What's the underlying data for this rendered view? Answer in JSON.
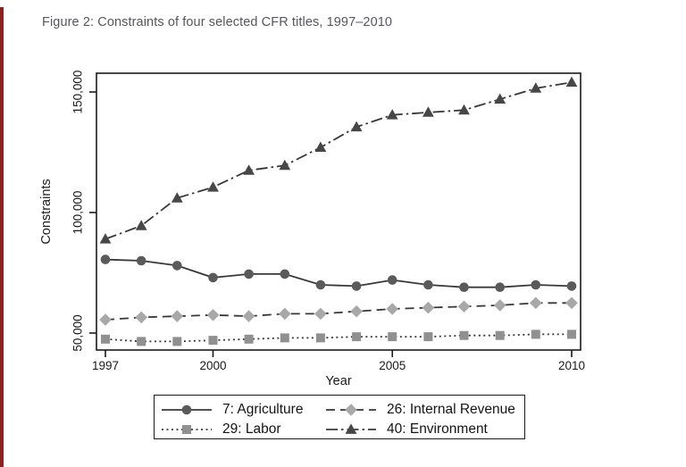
{
  "figure": {
    "title": "Figure 2: Constraints of four selected CFR titles, 1997–2010"
  },
  "chart_data": {
    "type": "line",
    "title": "Figure 2: Constraints of four selected CFR titles, 1997–2010",
    "xlabel": "Year",
    "ylabel": "Constraints",
    "x": [
      1997,
      1998,
      1999,
      2000,
      2001,
      2002,
      2003,
      2004,
      2005,
      2006,
      2007,
      2008,
      2009,
      2010
    ],
    "xticks": [
      1997,
      2000,
      2005,
      2010
    ],
    "yticks": [
      50000,
      100000,
      150000
    ],
    "ytick_labels": [
      "50,000",
      "100,000",
      "150,000"
    ],
    "xlim": [
      1996.75,
      2010.25
    ],
    "ylim": [
      43000,
      157700
    ],
    "grid": false,
    "legend_position": "bottom",
    "series": [
      {
        "name": "7: Agriculture",
        "marker": "circle",
        "line": "solid",
        "marker_color": "#5a5a5a",
        "line_color": "#383838",
        "values": [
          80500,
          80000,
          78000,
          73000,
          74500,
          74500,
          70000,
          69500,
          72000,
          70000,
          69000,
          69000,
          70000,
          69500
        ]
      },
      {
        "name": "26: Internal Revenue",
        "marker": "diamond",
        "line": "dashed",
        "marker_color": "#a8a8a8",
        "line_color": "#383838",
        "values": [
          55500,
          56500,
          57000,
          57500,
          57000,
          58000,
          58000,
          59000,
          60000,
          60500,
          61000,
          61500,
          62500,
          62500
        ]
      },
      {
        "name": "29: Labor",
        "marker": "square",
        "line": "dotted",
        "marker_color": "#909090",
        "line_color": "#383838",
        "values": [
          47500,
          46500,
          46500,
          47000,
          47500,
          48000,
          48000,
          48500,
          48500,
          48500,
          49000,
          49000,
          49500,
          49500
        ]
      },
      {
        "name": "40: Environment",
        "marker": "triangle",
        "line": "dashdot",
        "marker_color": "#474747",
        "line_color": "#383838",
        "values": [
          89000,
          94500,
          106000,
          110500,
          117500,
          119500,
          127000,
          135500,
          140500,
          141500,
          142500,
          147000,
          151500,
          154000
        ]
      }
    ]
  }
}
